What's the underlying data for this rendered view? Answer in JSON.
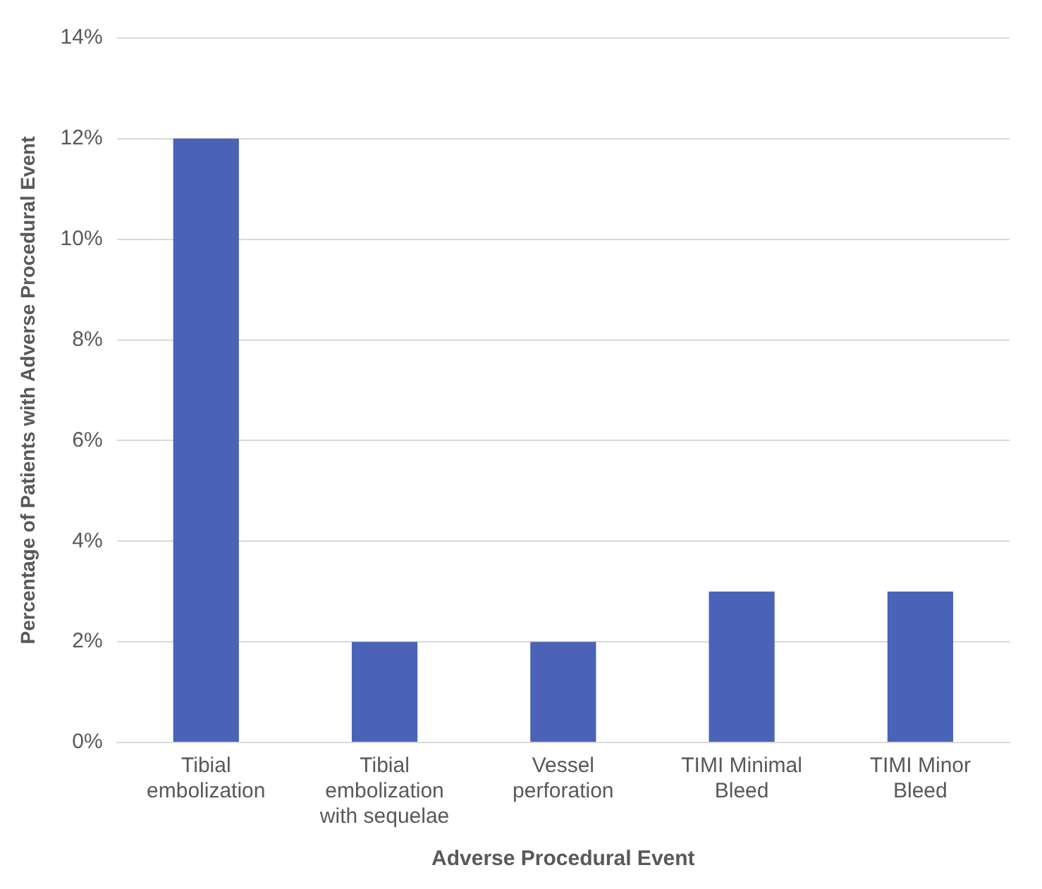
{
  "chart_data": {
    "type": "bar",
    "xlabel": "Adverse Procedural Event",
    "ylabel": "Percentage of Patients with Adverse Procedural Event",
    "categories": [
      "Tibial embolization",
      "Tibial embolization with sequelae",
      "Vessel perforation",
      "TIMI Minimal Bleed",
      "TIMI Minor Bleed"
    ],
    "values": [
      12,
      2,
      2,
      3,
      3
    ],
    "color": "#4a63b9",
    "ylim": [
      0,
      14
    ],
    "yticks": [
      {
        "value": 0,
        "label": "0%"
      },
      {
        "value": 2,
        "label": "2%"
      },
      {
        "value": 4,
        "label": "4%"
      },
      {
        "value": 6,
        "label": "6%"
      },
      {
        "value": 8,
        "label": "8%"
      },
      {
        "value": 10,
        "label": "10%"
      },
      {
        "value": 12,
        "label": "12%"
      },
      {
        "value": 14,
        "label": "14%"
      }
    ],
    "grid": "y",
    "legend": false
  }
}
